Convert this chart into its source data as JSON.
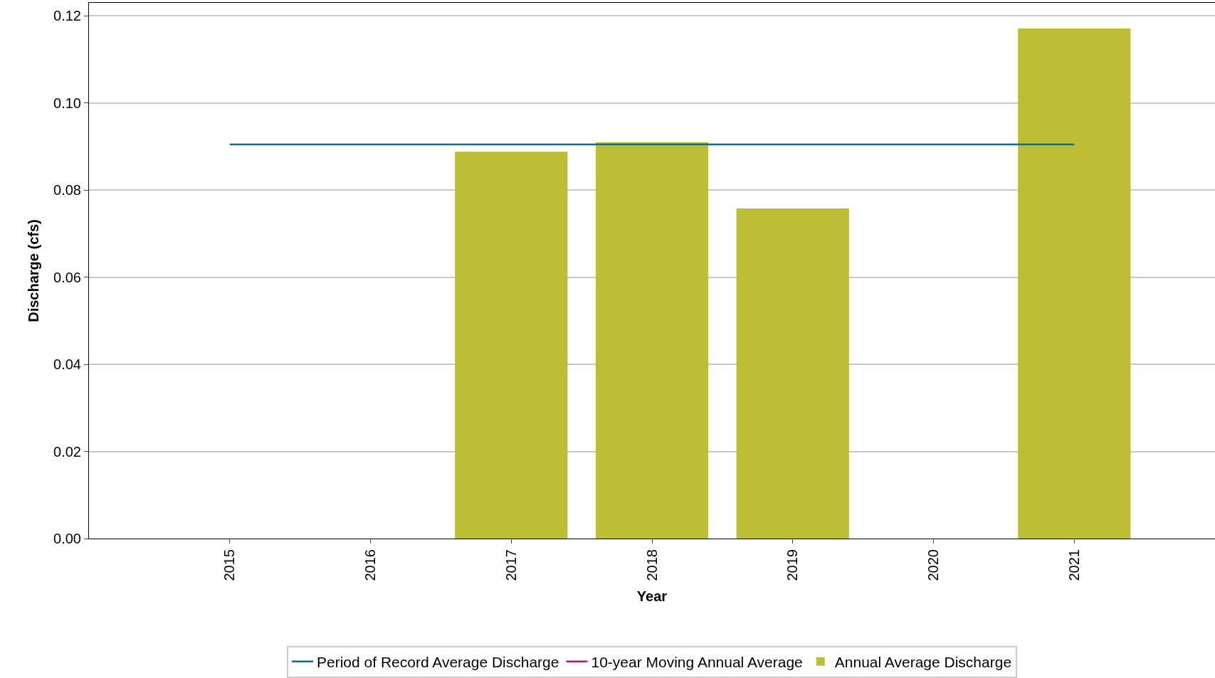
{
  "chart_data": {
    "type": "bar",
    "xlabel": "Year",
    "ylabel": "Discharge (cfs)",
    "categories": [
      "2015",
      "2016",
      "2017",
      "2018",
      "2019",
      "2020",
      "2021"
    ],
    "series": [
      {
        "name": "Period of Record Average Discharge",
        "type": "line",
        "color": "#176b87",
        "values": [
          0.0905,
          0.0905,
          0.0905,
          0.0905,
          0.0905,
          0.0905,
          0.0905
        ]
      },
      {
        "name": "10-year Moving Annual Average",
        "type": "line",
        "color": "#c2185b",
        "values": [
          null,
          null,
          null,
          null,
          null,
          null,
          null
        ]
      },
      {
        "name": "Annual Average Discharge",
        "color": "#bcbf35",
        "values": [
          null,
          null,
          0.0888,
          0.091,
          0.0758,
          null,
          0.1171
        ]
      }
    ],
    "ylim": [
      0,
      0.123
    ],
    "yticks": [
      {
        "value": 0,
        "label": "0.00"
      },
      {
        "value": 0.02,
        "label": "0.02"
      },
      {
        "value": 0.04,
        "label": "0.04"
      },
      {
        "value": 0.06,
        "label": "0.06"
      },
      {
        "value": 0.08,
        "label": "0.08"
      },
      {
        "value": 0.1,
        "label": "0.10"
      },
      {
        "value": 0.12,
        "label": "0.12"
      }
    ],
    "grid": "y",
    "legend": "bottom"
  }
}
